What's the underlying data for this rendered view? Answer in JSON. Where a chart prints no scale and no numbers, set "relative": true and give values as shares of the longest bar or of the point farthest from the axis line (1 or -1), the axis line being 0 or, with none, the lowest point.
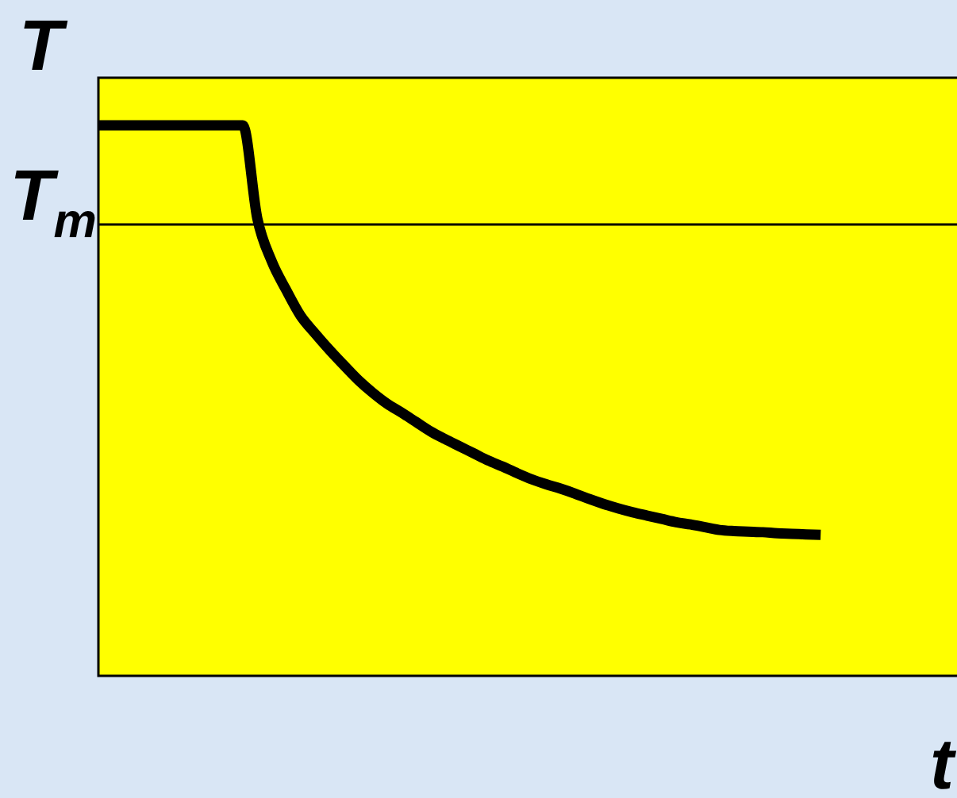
{
  "chart_data": {
    "type": "line",
    "xlabel": "t",
    "ylabel": "T",
    "relative": true,
    "categories": [
      null,
      null,
      null,
      null,
      null,
      null,
      null,
      null,
      null,
      null,
      null,
      null,
      null,
      null,
      null,
      null,
      null,
      null,
      null,
      null,
      null,
      null,
      null,
      null,
      null,
      null,
      null,
      null,
      null,
      null,
      null,
      null,
      null,
      null,
      null,
      null,
      null,
      null,
      null,
      null,
      null,
      null,
      null,
      null,
      null,
      null,
      null,
      null,
      null,
      null,
      null,
      null,
      null,
      null,
      null,
      null,
      null,
      null,
      null,
      null
    ],
    "series": [
      {
        "color": "#000000",
        "values": [
          1,
          1,
          1,
          1,
          1,
          1,
          1,
          1,
          1,
          1,
          1,
          0.831,
          0.753,
          0.701,
          0.654,
          0.622,
          0.592,
          0.564,
          0.537,
          0.514,
          0.494,
          0.478,
          0.461,
          0.444,
          0.43,
          0.417,
          0.404,
          0.391,
          0.38,
          0.368,
          0.357,
          0.348,
          0.34,
          0.331,
          0.321,
          0.312,
          0.304,
          0.297,
          0.291,
          0.285,
          0.279,
          0.275,
          0.27,
          0.265,
          0.263,
          0.262,
          0.261,
          0.259,
          0.258,
          0.257,
          0.256,
          null,
          null,
          null,
          null,
          null,
          null,
          null,
          null,
          null
        ]
      }
    ],
    "ref_lines": [
      {
        "axis": "y",
        "value": 0.82,
        "label": "T$_{m}$",
        "color": "#000000"
      }
    ]
  }
}
